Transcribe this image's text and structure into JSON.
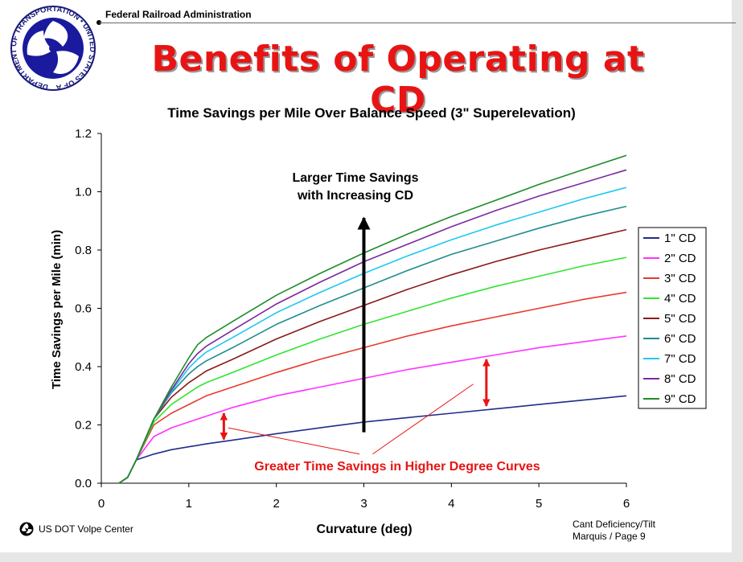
{
  "header": {
    "agency": "Federal Railroad Administration",
    "seal_lettering": "DEPARTMENT OF TRANSPORTATION • UNITED STATES OF AMERICA",
    "title": "Benefits of Operating at CD"
  },
  "footer": {
    "left": "US DOT Volpe Center",
    "right_line1": "Cant Deficiency/Tilt",
    "right_line2": "Marquis / Page 9"
  },
  "colors": {
    "title": "#e81414",
    "annotation": "#e81414",
    "arrow": "#000000"
  },
  "chart_data": {
    "type": "line",
    "title": "Time Savings per Mile Over Balance Speed (3\" Superelevation)",
    "xlabel": "Curvature (deg)",
    "ylabel": "Time Savings per Mile (min)",
    "xlim": [
      0,
      6
    ],
    "ylim": [
      0,
      1.2
    ],
    "xticks": [
      0,
      1,
      2,
      3,
      4,
      5,
      6
    ],
    "yticks": [
      "0.0",
      "0.2",
      "0.4",
      "0.6",
      "0.8",
      "1.0",
      "1.2"
    ],
    "legend_position": "right",
    "x": [
      0.2,
      0.3,
      0.4,
      0.6,
      0.8,
      1.0,
      1.1,
      1.2,
      1.5,
      2.0,
      2.5,
      3.0,
      3.5,
      4.0,
      4.5,
      5.0,
      5.5,
      6.0
    ],
    "series": [
      {
        "name": "1\" CD",
        "color": "#1f2d8c",
        "values": [
          0.0,
          0.02,
          0.08,
          0.1,
          0.115,
          0.125,
          0.13,
          0.135,
          0.148,
          0.17,
          0.19,
          0.21,
          0.225,
          0.24,
          0.255,
          0.27,
          0.285,
          0.3
        ]
      },
      {
        "name": "2\" CD",
        "color": "#ff33ff",
        "values": [
          0.0,
          0.02,
          0.08,
          0.16,
          0.19,
          0.21,
          0.22,
          0.23,
          0.26,
          0.3,
          0.33,
          0.36,
          0.39,
          0.415,
          0.44,
          0.465,
          0.485,
          0.505
        ]
      },
      {
        "name": "3\" CD",
        "color": "#e8392a",
        "values": [
          0.0,
          0.02,
          0.08,
          0.2,
          0.24,
          0.27,
          0.285,
          0.3,
          0.33,
          0.38,
          0.425,
          0.465,
          0.505,
          0.54,
          0.57,
          0.6,
          0.63,
          0.655
        ]
      },
      {
        "name": "4\" CD",
        "color": "#33e433",
        "values": [
          0.0,
          0.02,
          0.08,
          0.21,
          0.27,
          0.31,
          0.33,
          0.345,
          0.38,
          0.44,
          0.495,
          0.545,
          0.59,
          0.635,
          0.675,
          0.71,
          0.745,
          0.775
        ]
      },
      {
        "name": "5\" CD",
        "color": "#8b1a1a",
        "values": [
          0.0,
          0.02,
          0.08,
          0.22,
          0.295,
          0.345,
          0.365,
          0.385,
          0.425,
          0.495,
          0.555,
          0.61,
          0.665,
          0.715,
          0.76,
          0.8,
          0.835,
          0.87
        ]
      },
      {
        "name": "6\" CD",
        "color": "#218c8c",
        "values": [
          0.0,
          0.02,
          0.08,
          0.22,
          0.31,
          0.375,
          0.4,
          0.42,
          0.465,
          0.545,
          0.61,
          0.67,
          0.73,
          0.785,
          0.83,
          0.875,
          0.915,
          0.95
        ]
      },
      {
        "name": "7\" CD",
        "color": "#1ec8f0",
        "values": [
          0.0,
          0.02,
          0.08,
          0.22,
          0.315,
          0.395,
          0.425,
          0.45,
          0.5,
          0.585,
          0.655,
          0.72,
          0.78,
          0.835,
          0.885,
          0.93,
          0.975,
          1.015
        ]
      },
      {
        "name": "8\" CD",
        "color": "#7a2a9e",
        "values": [
          0.0,
          0.02,
          0.08,
          0.22,
          0.32,
          0.41,
          0.445,
          0.47,
          0.525,
          0.615,
          0.69,
          0.76,
          0.82,
          0.88,
          0.935,
          0.985,
          1.03,
          1.075
        ]
      },
      {
        "name": "9\" CD",
        "color": "#1f8c2a",
        "values": [
          0.0,
          0.02,
          0.08,
          0.22,
          0.33,
          0.43,
          0.475,
          0.5,
          0.555,
          0.645,
          0.72,
          0.79,
          0.855,
          0.915,
          0.97,
          1.025,
          1.075,
          1.125
        ]
      }
    ],
    "annotations": [
      {
        "id": "increasing",
        "lines": [
          "Larger Time Savings",
          "with Increasing CD"
        ],
        "color": "#000000",
        "arrow_x": 3.0,
        "arrow_from": 0.175,
        "arrow_to": 0.91
      },
      {
        "id": "curves",
        "text": "Greater Time Savings in Higher Degree Curves",
        "color": "#e81414",
        "text_x": 3.6,
        "text_y": 0.06,
        "double_arrows": [
          {
            "x": 1.4,
            "from": 0.15,
            "to": 0.24
          },
          {
            "x": 4.4,
            "from": 0.265,
            "to": 0.425
          }
        ],
        "pointers": [
          {
            "from_x": 1.45,
            "from_y": 0.19,
            "to_x": 2.95,
            "to_y": 0.1
          },
          {
            "from_x": 4.25,
            "from_y": 0.34,
            "to_x": 3.1,
            "to_y": 0.1
          }
        ]
      }
    ]
  }
}
